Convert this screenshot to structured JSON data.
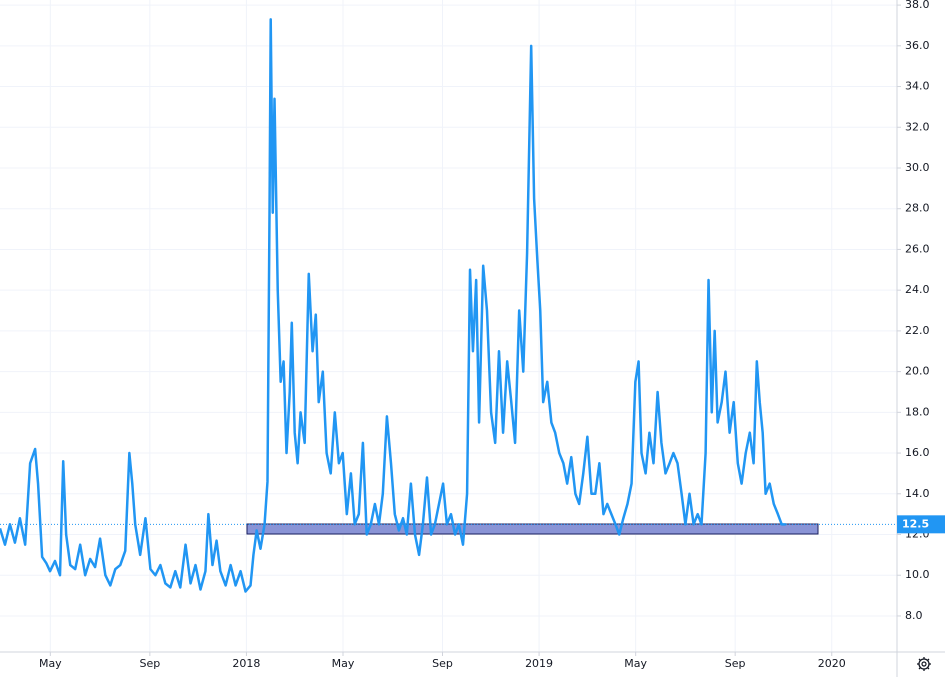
{
  "chart_data": {
    "type": "line",
    "x": [
      2017.158,
      2017.175,
      2017.192,
      2017.209,
      2017.226,
      2017.244,
      2017.261,
      2017.278,
      2017.288,
      2017.302,
      2017.316,
      2017.329,
      2017.346,
      2017.363,
      2017.374,
      2017.384,
      2017.398,
      2017.415,
      2017.432,
      2017.449,
      2017.466,
      2017.483,
      2017.5,
      2017.518,
      2017.535,
      2017.552,
      2017.569,
      2017.586,
      2017.6,
      2017.61,
      2017.62,
      2017.637,
      2017.655,
      2017.672,
      2017.689,
      2017.706,
      2017.723,
      2017.74,
      2017.757,
      2017.774,
      2017.792,
      2017.809,
      2017.826,
      2017.843,
      2017.86,
      2017.87,
      2017.884,
      2017.898,
      2017.911,
      2017.929,
      2017.946,
      2017.963,
      2017.98,
      2017.997,
      2018.014,
      2018.024,
      2018.035,
      2018.048,
      2018.062,
      2018.072,
      2018.079,
      2018.083,
      2018.09,
      2018.096,
      2018.107,
      2018.117,
      2018.127,
      2018.137,
      2018.148,
      2018.155,
      2018.165,
      2018.175,
      2018.185,
      2018.199,
      2018.213,
      2018.226,
      2018.237,
      2018.247,
      2018.261,
      2018.274,
      2018.288,
      2018.302,
      2018.316,
      2018.329,
      2018.343,
      2018.357,
      2018.37,
      2018.384,
      2018.398,
      2018.411,
      2018.425,
      2018.439,
      2018.453,
      2018.466,
      2018.48,
      2018.494,
      2018.507,
      2018.521,
      2018.535,
      2018.548,
      2018.562,
      2018.576,
      2018.59,
      2018.603,
      2018.617,
      2018.631,
      2018.644,
      2018.658,
      2018.672,
      2018.685,
      2018.699,
      2018.713,
      2018.726,
      2018.74,
      2018.754,
      2018.764,
      2018.774,
      2018.785,
      2018.795,
      2018.809,
      2018.822,
      2018.836,
      2018.85,
      2018.863,
      2018.877,
      2018.891,
      2018.905,
      2018.918,
      2018.932,
      2018.946,
      2018.959,
      2018.973,
      2018.983,
      2018.994,
      2019.004,
      2019.014,
      2019.028,
      2019.042,
      2019.055,
      2019.069,
      2019.083,
      2019.096,
      2019.11,
      2019.124,
      2019.137,
      2019.151,
      2019.165,
      2019.179,
      2019.192,
      2019.206,
      2019.22,
      2019.233,
      2019.247,
      2019.261,
      2019.274,
      2019.288,
      2019.302,
      2019.316,
      2019.329,
      2019.34,
      2019.35,
      2019.364,
      2019.377,
      2019.391,
      2019.405,
      2019.418,
      2019.432,
      2019.446,
      2019.459,
      2019.473,
      2019.487,
      2019.5,
      2019.514,
      2019.528,
      2019.542,
      2019.555,
      2019.569,
      2019.579,
      2019.59,
      2019.6,
      2019.61,
      2019.624,
      2019.637,
      2019.651,
      2019.665,
      2019.679,
      2019.692,
      2019.706,
      2019.72,
      2019.733,
      2019.744,
      2019.754,
      2019.764,
      2019.774,
      2019.788,
      2019.802,
      2019.816,
      2019.829,
      2019.843
    ],
    "series": [
      {
        "color": "#2196f3",
        "values": [
          12.3,
          11.5,
          12.5,
          11.6,
          12.8,
          11.5,
          15.5,
          16.2,
          14.5,
          10.9,
          10.6,
          10.2,
          10.7,
          10.0,
          15.6,
          12.0,
          10.5,
          10.3,
          11.5,
          10.0,
          10.8,
          10.4,
          11.8,
          10.0,
          9.5,
          10.3,
          10.5,
          11.2,
          16.0,
          14.5,
          12.5,
          11.0,
          12.8,
          10.3,
          10.0,
          10.5,
          9.6,
          9.4,
          10.2,
          9.4,
          11.5,
          9.6,
          10.5,
          9.3,
          10.2,
          13.0,
          10.5,
          11.7,
          10.2,
          9.5,
          10.5,
          9.5,
          10.2,
          9.2,
          9.5,
          11.0,
          12.2,
          11.3,
          12.5,
          14.6,
          28.0,
          37.3,
          27.8,
          33.4,
          24.0,
          19.5,
          20.5,
          16.0,
          19.0,
          22.4,
          17.0,
          15.5,
          18.0,
          16.5,
          24.8,
          21.0,
          22.8,
          18.5,
          20.0,
          16.0,
          15.0,
          18.0,
          15.5,
          16.0,
          13.0,
          15.0,
          12.5,
          13.0,
          16.5,
          12.0,
          12.5,
          13.5,
          12.5,
          14.0,
          17.8,
          15.5,
          13.0,
          12.2,
          12.8,
          12.0,
          14.5,
          12.0,
          11.0,
          12.5,
          14.8,
          12.0,
          12.5,
          13.5,
          14.5,
          12.5,
          13.0,
          12.0,
          12.5,
          11.5,
          14.0,
          25.0,
          21.0,
          24.5,
          17.5,
          25.2,
          23.0,
          18.0,
          16.5,
          21.0,
          17.0,
          20.5,
          18.5,
          16.5,
          23.0,
          20.0,
          25.8,
          36.0,
          28.5,
          25.5,
          23.0,
          18.5,
          19.5,
          17.5,
          17.0,
          16.0,
          15.5,
          14.5,
          15.8,
          14.0,
          13.5,
          15.0,
          16.8,
          14.0,
          14.0,
          15.5,
          13.0,
          13.5,
          13.0,
          12.5,
          12.0,
          12.8,
          13.5,
          14.5,
          19.5,
          20.5,
          16.0,
          15.0,
          17.0,
          15.5,
          19.0,
          16.5,
          15.0,
          15.5,
          16.0,
          15.5,
          14.0,
          12.5,
          14.0,
          12.5,
          13.0,
          12.5,
          16.0,
          24.5,
          18.0,
          22.0,
          17.5,
          18.5,
          20.0,
          17.0,
          18.5,
          15.5,
          14.5,
          16.0,
          17.0,
          15.5,
          20.5,
          18.5,
          17.0,
          14.0,
          14.5,
          13.5,
          13.0,
          12.5,
          12.5
        ]
      }
    ],
    "last_value": 12.5,
    "xlim": [
      2017.158,
      2020.223
    ],
    "ylim": [
      6.23,
      38.25
    ],
    "xticks": [
      {
        "value": 2017.33,
        "label": "May"
      },
      {
        "value": 2017.67,
        "label": "Sep"
      },
      2018,
      {
        "value": 2018.33,
        "label": "May"
      },
      {
        "value": 2018.67,
        "label": "Sep"
      },
      2019,
      {
        "value": 2019.33,
        "label": "May"
      },
      {
        "value": 2019.67,
        "label": "Sep"
      },
      2020
    ],
    "yticks": [
      {
        "value": 8,
        "label": "8.0"
      },
      {
        "value": 10,
        "label": "10.0"
      },
      {
        "value": 12,
        "label": "12.0"
      },
      {
        "value": 14,
        "label": "14.0"
      },
      {
        "value": 16,
        "label": "16.0"
      },
      {
        "value": 18,
        "label": "18.0"
      },
      {
        "value": 20,
        "label": "20.0"
      },
      {
        "value": 22,
        "label": "22.0"
      },
      {
        "value": 24,
        "label": "24.0"
      },
      {
        "value": 26,
        "label": "26.0"
      },
      {
        "value": 28,
        "label": "28.0"
      },
      {
        "value": 30,
        "label": "30.0"
      },
      {
        "value": 32,
        "label": "32.0"
      },
      {
        "value": 34,
        "label": "34.0"
      },
      {
        "value": 36,
        "label": "36.0"
      },
      {
        "value": 38,
        "label": "38.0"
      }
    ],
    "grid": true
  }
}
